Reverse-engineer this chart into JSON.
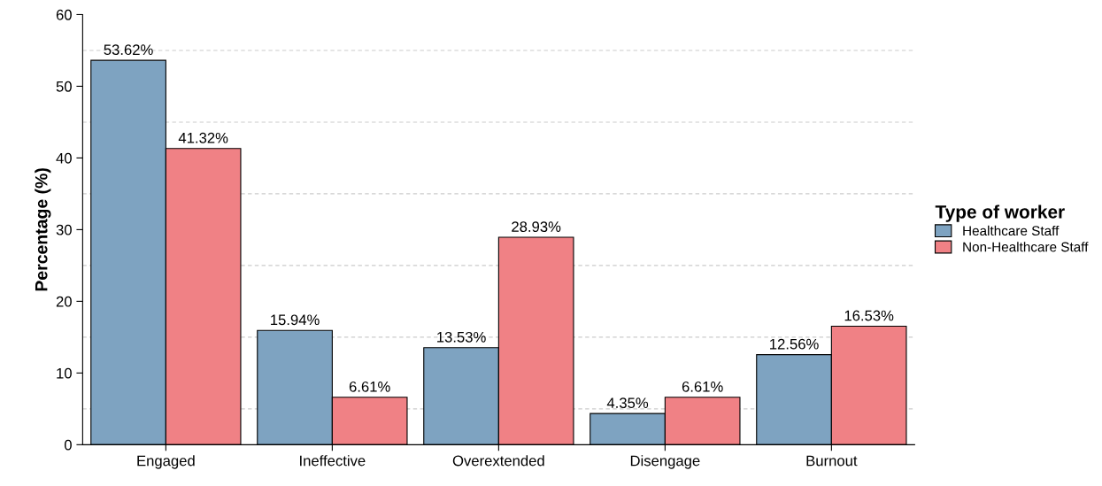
{
  "chart_data": {
    "type": "bar",
    "ylabel": "Percentage (%)",
    "legend_title": "Type of worker",
    "categories": [
      "Engaged",
      "Ineffective",
      "Overextended",
      "Disengage",
      "Burnout"
    ],
    "series": [
      {
        "name": "Healthcare Staff",
        "color": "#7ea3c1",
        "values": [
          53.62,
          15.94,
          13.53,
          4.35,
          12.56
        ],
        "value_labels": [
          "53.62%",
          "15.94%",
          "13.53%",
          "4.35%",
          "12.56%"
        ]
      },
      {
        "name": "Non-Healthcare Staff",
        "color": "#f08185",
        "values": [
          41.32,
          6.61,
          28.93,
          6.61,
          16.53
        ],
        "value_labels": [
          "41.32%",
          "6.61%",
          "28.93%",
          "6.61%",
          "16.53%"
        ]
      }
    ],
    "ylim": [
      0,
      60
    ],
    "yticks": [
      0,
      10,
      20,
      30,
      40,
      50,
      60
    ],
    "ref_lines": [
      {
        "axis": "y",
        "value": 5,
        "color": "#cccccc",
        "line_style": "dashed"
      },
      {
        "axis": "y",
        "value": 15,
        "color": "#cccccc",
        "line_style": "dashed"
      },
      {
        "axis": "y",
        "value": 25,
        "color": "#cccccc",
        "line_style": "dashed"
      },
      {
        "axis": "y",
        "value": 35,
        "color": "#cccccc",
        "line_style": "dashed"
      },
      {
        "axis": "y",
        "value": 45,
        "color": "#cccccc",
        "line_style": "dashed"
      },
      {
        "axis": "y",
        "value": 55,
        "color": "#cccccc",
        "line_style": "dashed"
      }
    ],
    "legend": "right",
    "grid": false
  }
}
